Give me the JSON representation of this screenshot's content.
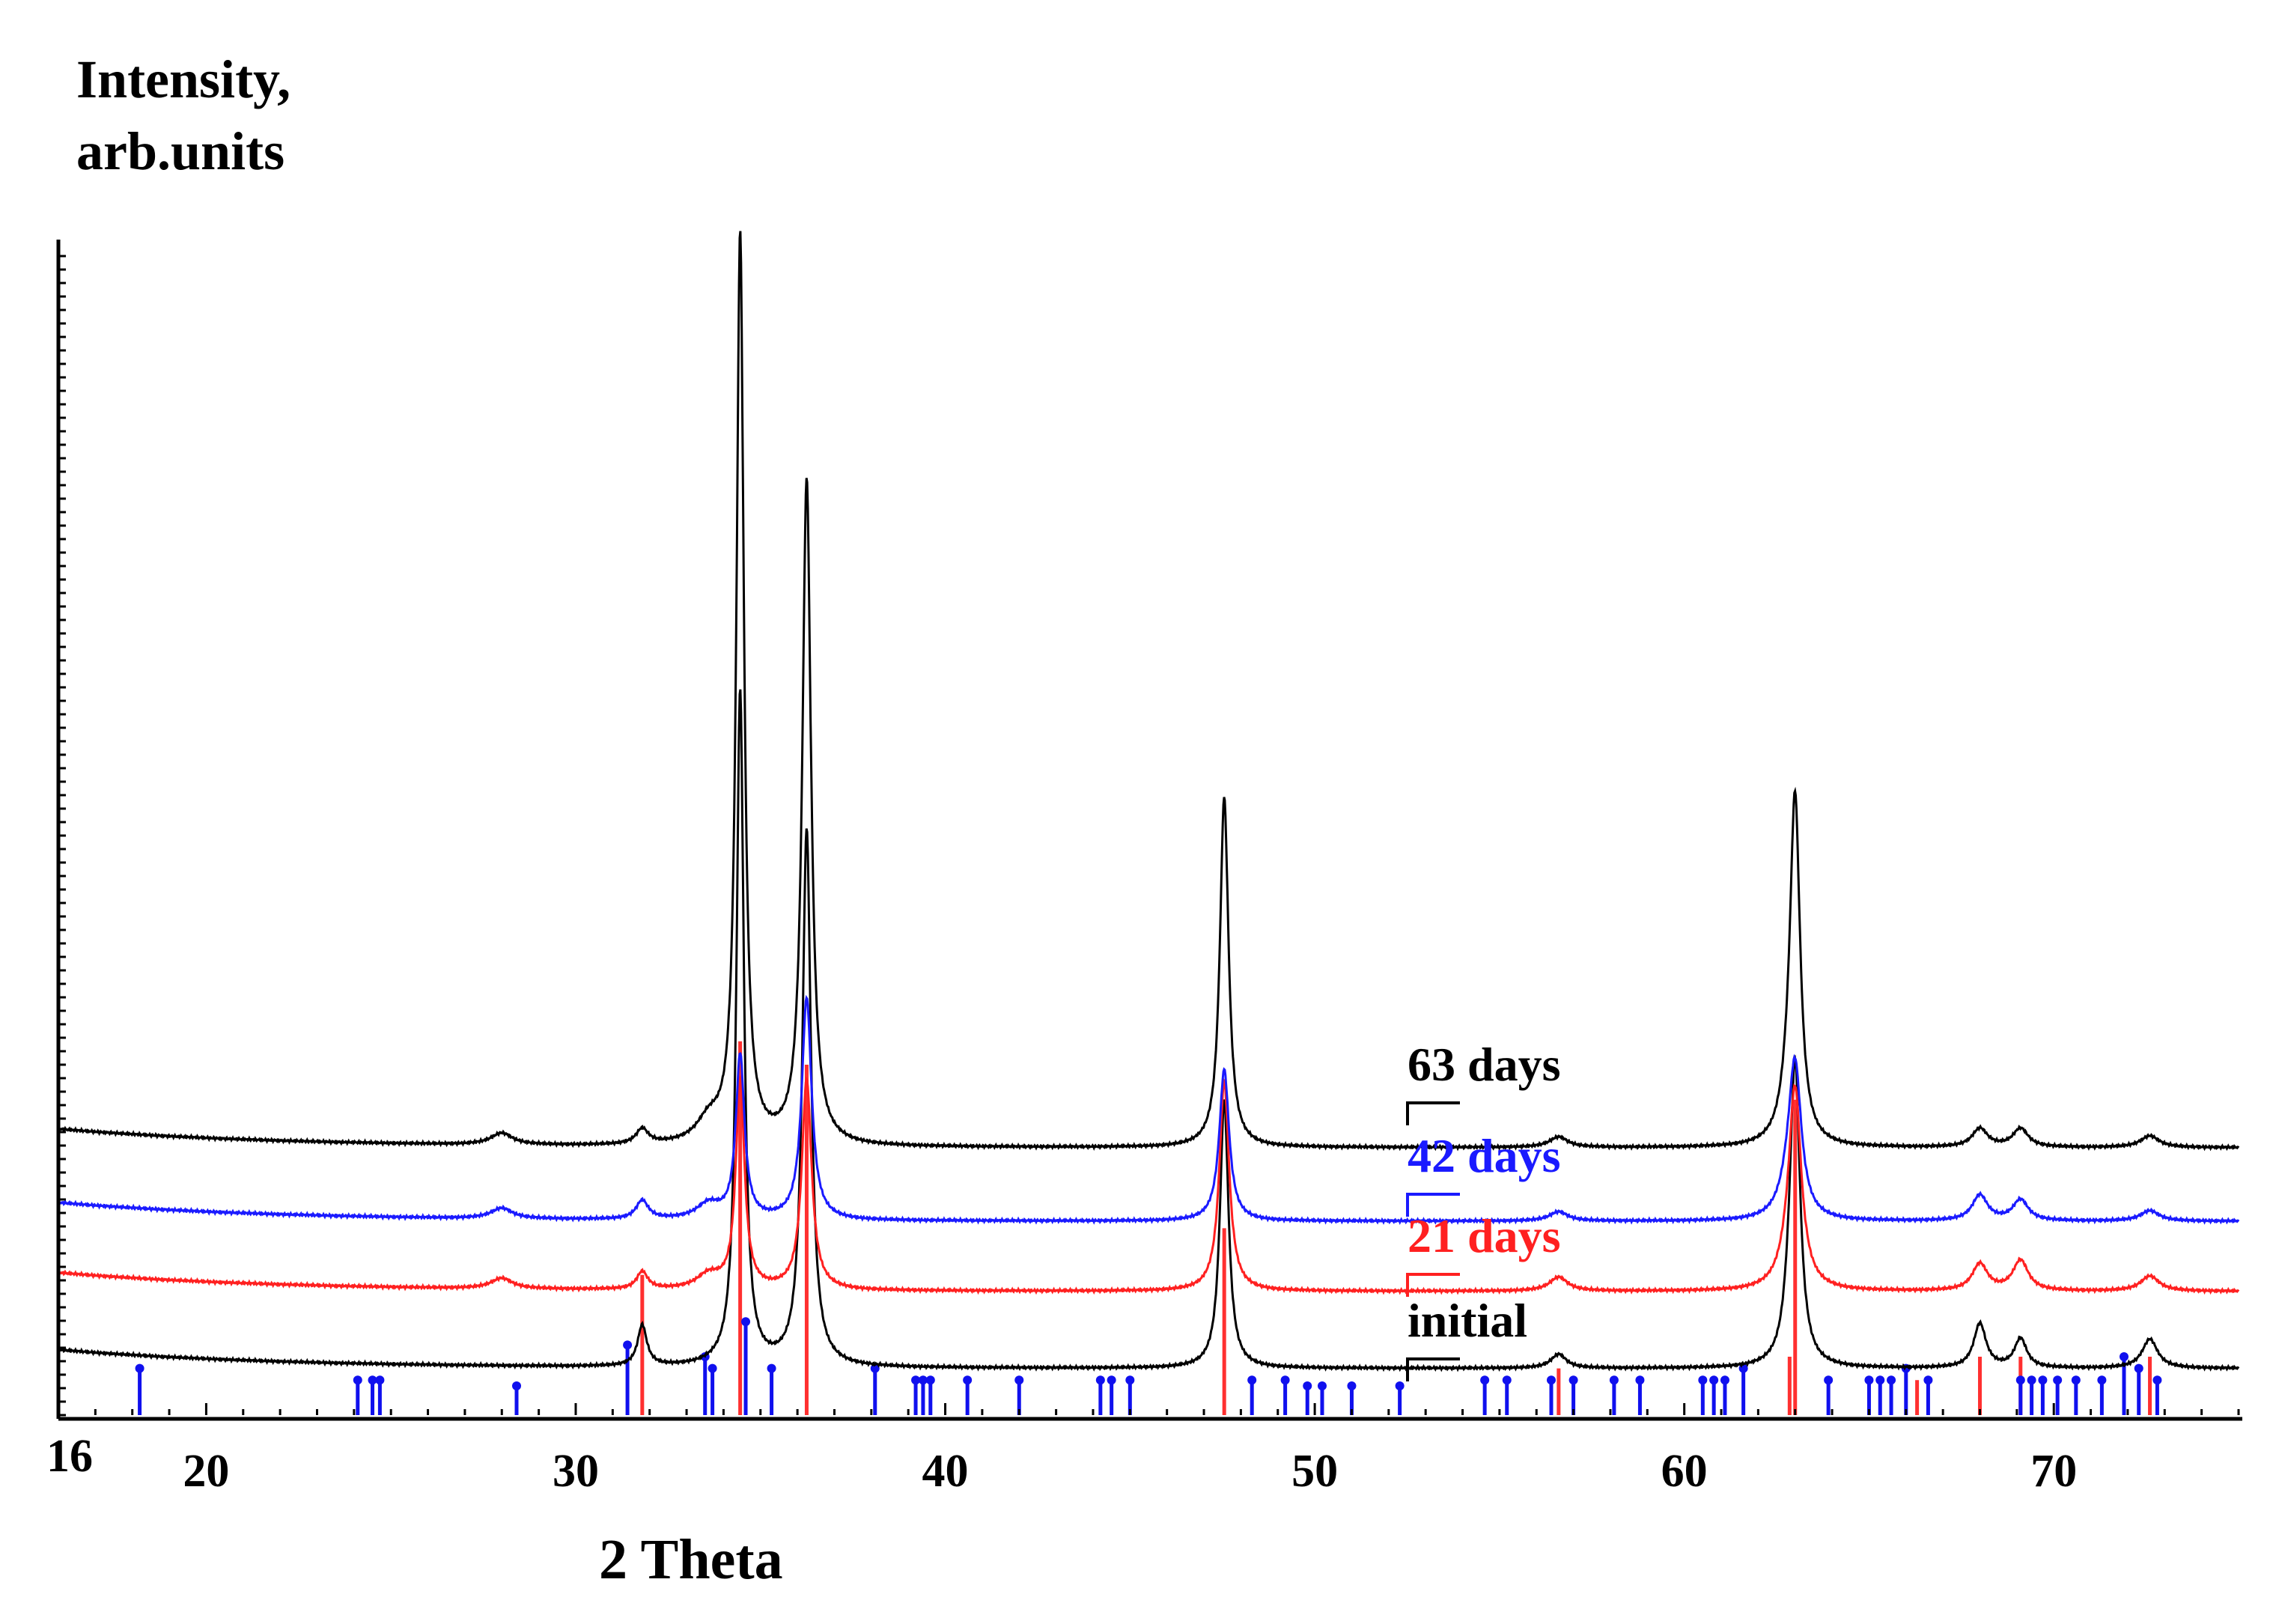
{
  "chart_data": {
    "type": "line",
    "ylabel_line1": "Intensity,",
    "ylabel_line2": "arb.units",
    "xlabel": "2 Theta",
    "xlim": [
      16,
      75
    ],
    "xticks": [
      16,
      20,
      30,
      40,
      50,
      60,
      70
    ],
    "ylim": [
      0,
      100
    ],
    "colors": {
      "black": "#000000",
      "blue": "#1a1aff",
      "red": "#ff2020",
      "ref_blue": "#1010ee",
      "ref_red": "#ff3030"
    },
    "series": [
      {
        "name": "initial",
        "color": "#000000",
        "baseline": 4,
        "peaks": [
          [
            31.8,
            3.5,
            0.15
          ],
          [
            34.45,
            58,
            0.12
          ],
          [
            36.25,
            46,
            0.14
          ],
          [
            47.55,
            23,
            0.14
          ],
          [
            56.6,
            1.2,
            0.25
          ],
          [
            62.85,
            2.5,
            0.2
          ],
          [
            63.0,
            25,
            0.16
          ],
          [
            68.0,
            3.8,
            0.2
          ],
          [
            69.1,
            2.5,
            0.2
          ],
          [
            72.6,
            2.5,
            0.25
          ]
        ]
      },
      {
        "name": "21 days",
        "color": "#ff2020",
        "baseline": 10.6,
        "peaks": [
          [
            28.0,
            0.9,
            0.35
          ],
          [
            31.8,
            1.5,
            0.18
          ],
          [
            33.6,
            1.2,
            0.4
          ],
          [
            34.45,
            18,
            0.14
          ],
          [
            36.25,
            18,
            0.16
          ],
          [
            47.55,
            18,
            0.16
          ],
          [
            56.6,
            1.2,
            0.3
          ],
          [
            62.85,
            2,
            0.3
          ],
          [
            63.0,
            16,
            0.2
          ],
          [
            68.0,
            2.3,
            0.25
          ],
          [
            69.1,
            2.6,
            0.25
          ],
          [
            72.6,
            1.3,
            0.3
          ]
        ]
      },
      {
        "name": "42 days",
        "color": "#1a1aff",
        "baseline": 16.6,
        "peaks": [
          [
            28.0,
            0.9,
            0.35
          ],
          [
            31.8,
            1.6,
            0.2
          ],
          [
            33.6,
            1.3,
            0.4
          ],
          [
            34.45,
            14,
            0.14
          ],
          [
            36.25,
            19,
            0.16
          ],
          [
            47.55,
            13,
            0.16
          ],
          [
            56.6,
            0.8,
            0.3
          ],
          [
            62.85,
            2.5,
            0.3
          ],
          [
            63.0,
            12,
            0.2
          ],
          [
            68.0,
            2.2,
            0.25
          ],
          [
            69.1,
            1.8,
            0.25
          ],
          [
            72.6,
            0.9,
            0.3
          ]
        ]
      },
      {
        "name": "63 days",
        "color": "#000000",
        "baseline": 22.9,
        "peaks": [
          [
            28.0,
            1.0,
            0.35
          ],
          [
            31.8,
            1.3,
            0.2
          ],
          [
            33.6,
            1.8,
            0.4
          ],
          [
            34.45,
            78,
            0.12
          ],
          [
            36.25,
            57,
            0.14
          ],
          [
            47.55,
            30,
            0.14
          ],
          [
            56.6,
            0.9,
            0.3
          ],
          [
            62.85,
            3.5,
            0.25
          ],
          [
            63.0,
            28,
            0.16
          ],
          [
            68.0,
            1.6,
            0.25
          ],
          [
            69.1,
            1.6,
            0.25
          ],
          [
            72.6,
            1.0,
            0.3
          ]
        ]
      }
    ],
    "reference_red": {
      "color": "#ff3030",
      "lines": [
        [
          31.8,
          12
        ],
        [
          34.45,
          32
        ],
        [
          36.25,
          30
        ],
        [
          47.55,
          16
        ],
        [
          56.6,
          4
        ],
        [
          62.85,
          5
        ],
        [
          63.0,
          27
        ],
        [
          66.3,
          3
        ],
        [
          68.0,
          5
        ],
        [
          69.1,
          5
        ],
        [
          72.6,
          5
        ]
      ]
    },
    "reference_blue": {
      "color": "#1010ee",
      "lines": [
        [
          18.2,
          4
        ],
        [
          24.1,
          3
        ],
        [
          24.5,
          3
        ],
        [
          24.7,
          3
        ],
        [
          28.4,
          2.5
        ],
        [
          31.4,
          6
        ],
        [
          33.5,
          5
        ],
        [
          33.7,
          4
        ],
        [
          34.6,
          8
        ],
        [
          35.3,
          4
        ],
        [
          38.1,
          4
        ],
        [
          39.2,
          3
        ],
        [
          39.4,
          3
        ],
        [
          39.6,
          3
        ],
        [
          40.6,
          3
        ],
        [
          42.0,
          3
        ],
        [
          44.2,
          3
        ],
        [
          44.5,
          3
        ],
        [
          45.0,
          3
        ],
        [
          48.3,
          3
        ],
        [
          49.2,
          3
        ],
        [
          49.8,
          2.5
        ],
        [
          50.2,
          2.5
        ],
        [
          51.0,
          2.5
        ],
        [
          52.3,
          2.5
        ],
        [
          54.6,
          3
        ],
        [
          55.2,
          3
        ],
        [
          56.4,
          3
        ],
        [
          57.0,
          3
        ],
        [
          58.1,
          3
        ],
        [
          58.8,
          3
        ],
        [
          60.5,
          3
        ],
        [
          60.8,
          3
        ],
        [
          61.1,
          3
        ],
        [
          61.6,
          4
        ],
        [
          63.9,
          3
        ],
        [
          65.0,
          3
        ],
        [
          65.3,
          3
        ],
        [
          65.6,
          3
        ],
        [
          66.0,
          4
        ],
        [
          66.6,
          3
        ],
        [
          69.1,
          3
        ],
        [
          69.4,
          3
        ],
        [
          69.7,
          3
        ],
        [
          70.1,
          3
        ],
        [
          70.6,
          3
        ],
        [
          71.3,
          3
        ],
        [
          71.9,
          5
        ],
        [
          72.3,
          4
        ],
        [
          72.8,
          3
        ]
      ]
    }
  }
}
